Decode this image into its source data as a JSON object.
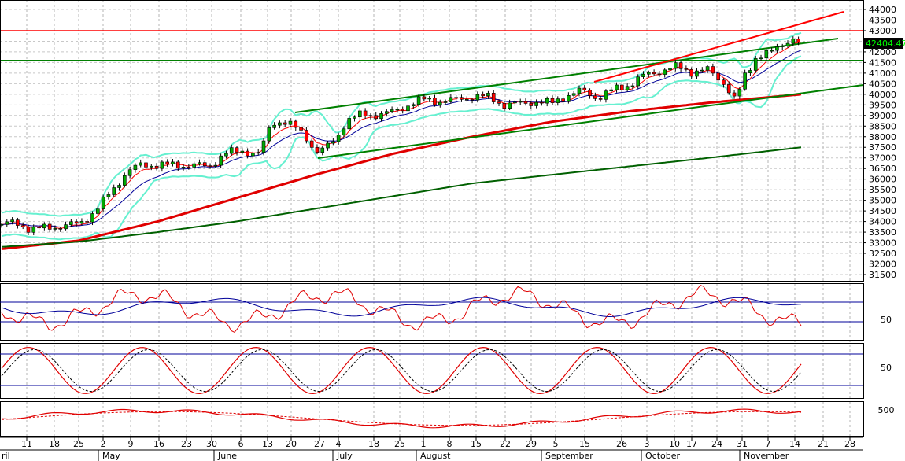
{
  "chart_data": {
    "type": "candlestick",
    "price_axis": {
      "min": 31500,
      "max": 44000,
      "step": 500,
      "ticks": [
        "44000",
        "43500",
        "43000",
        "42500",
        "42000",
        "41500",
        "41000",
        "40500",
        "40000",
        "39500",
        "39000",
        "38500",
        "38000",
        "37500",
        "37000",
        "36500",
        "36000",
        "35500",
        "35000",
        "34500",
        "34000",
        "33500",
        "33000",
        "32500",
        "32000",
        "31500"
      ]
    },
    "last_price": {
      "label": "42404.47",
      "value": 42404.47
    },
    "x_axis": {
      "day_ticks": [
        "11",
        "18",
        "25",
        "2",
        "9",
        "16",
        "23",
        "30",
        "6",
        "13",
        "20",
        "27",
        "4",
        "18",
        "25",
        "1",
        "8",
        "15",
        "22",
        "29",
        "5",
        "15",
        "26",
        "3",
        "10",
        "17",
        "24",
        "31",
        "7",
        "14",
        "21",
        "28"
      ],
      "month_labels": [
        "ril",
        "May",
        "June",
        "July",
        "August",
        "September",
        "October",
        "November"
      ]
    },
    "horizontal_lines": [
      {
        "value": 43000,
        "color": "#ff0000"
      },
      {
        "value": 41600,
        "color": "#008000"
      }
    ],
    "indicator_panels": [
      {
        "name": "rsi",
        "levels": [
          70,
          50
        ],
        "tick_label": "50"
      },
      {
        "name": "stochastic",
        "levels": [
          80,
          20
        ],
        "tick_label": "50"
      },
      {
        "name": "oscillator",
        "tick_label": "500"
      }
    ],
    "colors": {
      "up": "#00aa00",
      "down": "#ff0000",
      "bollinger": "#66f0d0",
      "ma_long": "#e00000",
      "ma_longest": "#006000",
      "channel": "#008000",
      "ema_fast": "#ff0000",
      "ema_slow": "#000099",
      "last_price_box": "#000000",
      "last_price_text": "#00ff00"
    },
    "grid": true
  }
}
